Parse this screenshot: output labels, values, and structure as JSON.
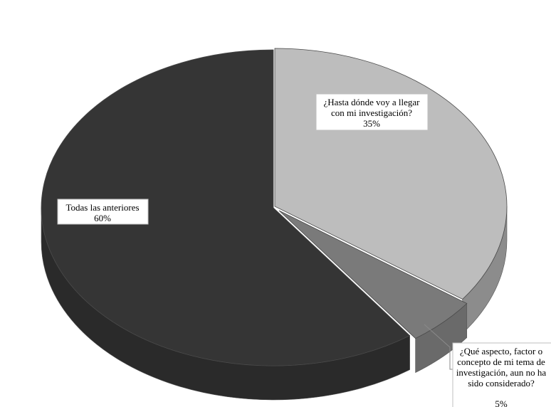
{
  "chart_data": {
    "type": "pie",
    "style": "3d-exploded-perspective",
    "title": "",
    "slices": [
      {
        "name": "¿Hasta dónde voy a llegar con mi investigación?",
        "label_lines": [
          "¿Hasta dónde voy a llegar",
          "con mi investigación?"
        ],
        "value": 35,
        "pct_label": "35%",
        "color_top": "#bdbdbd",
        "color_side": "#8c8c8c"
      },
      {
        "name": "¿Qué aspecto, factor o concepto de mi tema de investigación, aun no ha sido considerado?",
        "label_lines": [
          "¿Qué aspecto, factor o",
          "concepto de mi tema de",
          "investigación, aun no ha",
          "sido considerado?"
        ],
        "value": 5,
        "pct_label": "5%",
        "color_top": "#7a7a7a",
        "color_side": "#6a6a6a"
      },
      {
        "name": "Todas las anteriores",
        "label_lines": [
          "Todas las anteriores"
        ],
        "value": 60,
        "pct_label": "60%",
        "color_top": "#353535",
        "color_side": "#2a2a2a"
      }
    ]
  }
}
